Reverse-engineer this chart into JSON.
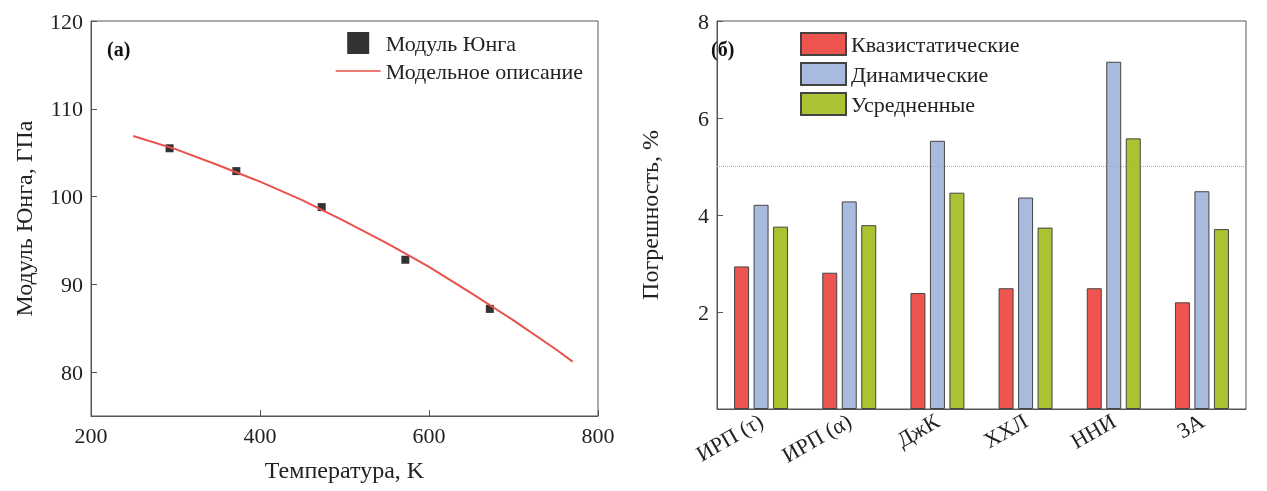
{
  "chart_data": [
    {
      "type": "scatter",
      "xlabel": "Температура, K",
      "ylabel": "Модуль Юнга, ГПа",
      "annotations": [
        "(a)"
      ],
      "xlim": [
        200,
        800
      ],
      "xticks": [
        200,
        400,
        600,
        800
      ],
      "ylim": [
        75,
        120
      ],
      "yticks": [
        80,
        90,
        100,
        110,
        120
      ],
      "legend": "top right",
      "series": [
        {
          "name": "Модуль Юнга",
          "marker": "square",
          "color": "#000000",
          "x": [
            293,
            372,
            473,
            572,
            672
          ],
          "values": [
            105.5,
            102.9,
            98.8,
            92.8,
            87.2
          ]
        },
        {
          "name": "Модельное описание",
          "type": "line",
          "marker": "none",
          "line_style": "solid",
          "color": "#e8524a",
          "x": [
            250,
            300,
            350,
            400,
            450,
            500,
            550,
            600,
            650,
            700,
            750,
            770
          ],
          "values": [
            106.9,
            105.4,
            103.6,
            101.7,
            99.6,
            97.2,
            94.7,
            92.0,
            89.0,
            85.9,
            82.6,
            81.2
          ]
        }
      ]
    },
    {
      "type": "bar",
      "ylabel": "Погрешность, %",
      "annotations": [
        "(б)"
      ],
      "categories": [
        "ИРП (τ)",
        "ИРП (α)",
        "ДжК",
        "ХХЛ",
        "ННИ",
        "ЗА"
      ],
      "ylim": [
        0,
        8
      ],
      "yticks": [
        2,
        4,
        6,
        8
      ],
      "legend": "top left",
      "ref_lines": [
        {
          "axis": "y",
          "value": 5,
          "color": "#aaaaaa",
          "line_style": "dotted"
        }
      ],
      "series": [
        {
          "name": "Квазистатические",
          "color": "#ee5550",
          "values": [
            2.94,
            2.81,
            2.39,
            2.49,
            2.49,
            2.2
          ]
        },
        {
          "name": "Динамические",
          "color": "#a9badf",
          "values": [
            4.21,
            4.28,
            5.53,
            4.36,
            7.16,
            4.49
          ]
        },
        {
          "name": "Усредненные",
          "color": "#abc232",
          "values": [
            3.76,
            3.79,
            4.46,
            3.74,
            5.58,
            3.71
          ]
        }
      ]
    }
  ]
}
